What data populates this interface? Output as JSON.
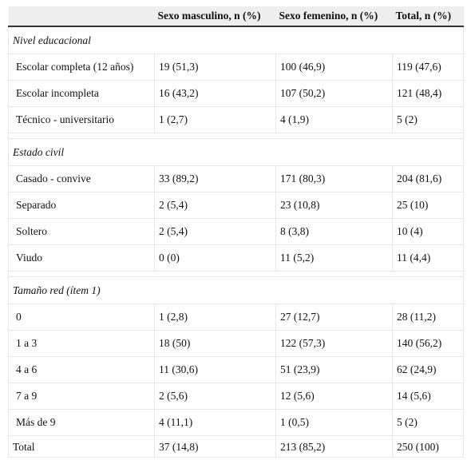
{
  "header": {
    "col0": "",
    "col1": "Sexo masculino, n (%)",
    "col2": "Sexo femenino, n (%)",
    "col3": "Total, n (%)"
  },
  "sections": [
    {
      "title": "Nivel educacional",
      "rows": [
        [
          "Escolar completa (12 años)",
          "19 (51,3)",
          "100 (46,9)",
          "119 (47,6)"
        ],
        [
          "Escolar incompleta",
          "16 (43,2)",
          "107 (50,2)",
          "121 (48,4)"
        ],
        [
          "Técnico - universitario",
          "1 (2,7)",
          "4 (1,9)",
          "5 (2)"
        ]
      ]
    },
    {
      "title": "Estado civil",
      "rows": [
        [
          "Casado - convive",
          "33 (89,2)",
          "171 (80,3)",
          "204 (81,6)"
        ],
        [
          "Separado",
          "2 (5,4)",
          "23 (10,8)",
          "25 (10)"
        ],
        [
          "Soltero",
          "2 (5,4)",
          "8 (3,8)",
          "10 (4)"
        ],
        [
          "Viudo",
          "0 (0)",
          "11 (5,2)",
          "11 (4,4)"
        ]
      ]
    },
    {
      "title": "Tamaño red (ítem 1)",
      "rows": [
        [
          "0",
          "1 (2,8)",
          "27 (12,7)",
          "28 (11,2)"
        ],
        [
          "1 a 3",
          "18 (50)",
          "122 (57,3)",
          "140 (56,2)"
        ],
        [
          "4 a 6",
          "11 (30,6)",
          "51 (23,9)",
          "62 (24,9)"
        ],
        [
          "7 a 9",
          "2 (5,6)",
          "12 (5,6)",
          "14 (5,6)"
        ],
        [
          "Más de 9",
          "4 (11,1)",
          "1 (0,5)",
          "5 (2)"
        ]
      ]
    }
  ],
  "total_row": [
    "Total",
    "37 (14,8)",
    "213 (85,2)",
    "250 (100)"
  ]
}
